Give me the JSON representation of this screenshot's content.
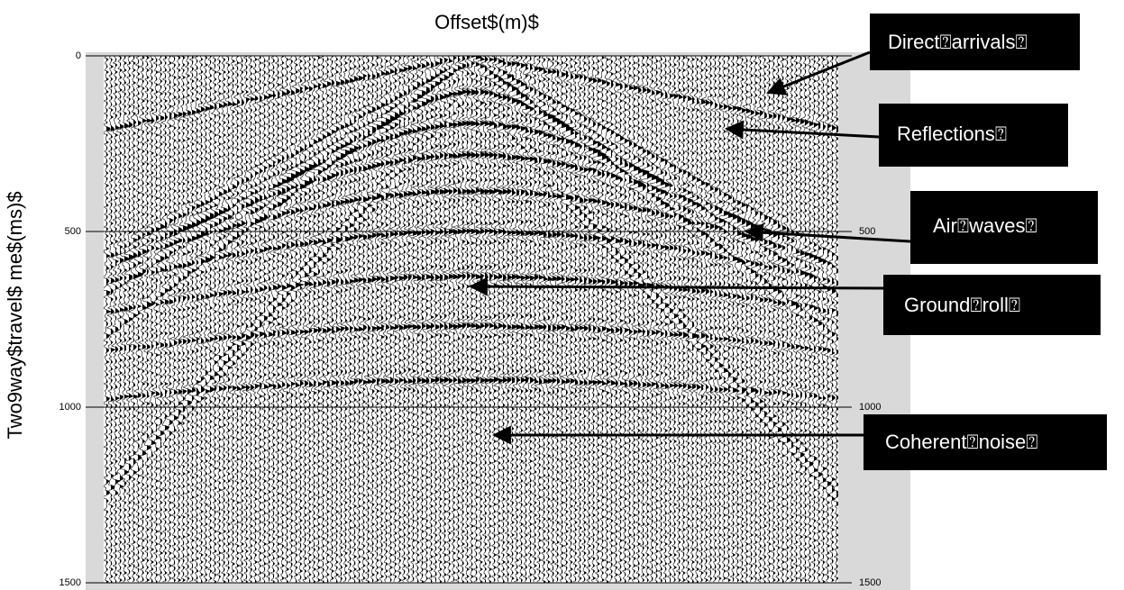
{
  "title": "Offset$(m)$",
  "y_axis_label": "Two9way$travel$ me$(ms)$",
  "left_ticks": [
    "0",
    "500",
    "1000",
    "1500"
  ],
  "right_ticks": [
    "500",
    "1000",
    "1500"
  ],
  "annotations": [
    "Direct⍰arrivals⍰",
    "Reflections⍰",
    "Air⍰waves⍰",
    "Ground⍰roll⍰",
    "Coherent⍰noise⍰"
  ]
}
